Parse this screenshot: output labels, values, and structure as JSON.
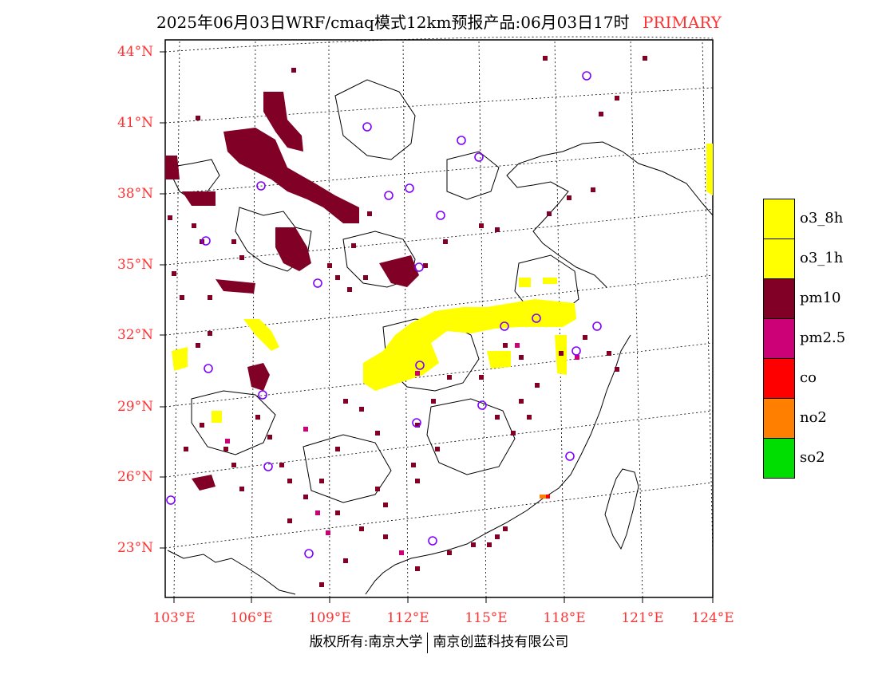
{
  "title": {
    "main": "2025年06月03日WRF/cmaq模式12km预报产品:06月03日17时",
    "status": "PRIMARY"
  },
  "map": {
    "lat_labels": [
      "44°N",
      "41°N",
      "38°N",
      "35°N",
      "32°N",
      "29°N",
      "26°N",
      "23°N"
    ],
    "lon_labels": [
      "103°E",
      "106°E",
      "109°E",
      "112°E",
      "115°E",
      "118°E",
      "121°E",
      "124°E"
    ],
    "colors": {
      "o3_8h": "#ffff00",
      "o3_1h": "#ffff00",
      "pm10": "#800026",
      "pm2_5": "#cc0077",
      "co": "#ff0000",
      "no2": "#ff8000",
      "so2": "#00dd00",
      "station": "#8000ff",
      "grid": "#000000",
      "label": "#ff3333"
    }
  },
  "legend": {
    "items": [
      {
        "label": "o3_8h",
        "color": "#ffff00"
      },
      {
        "label": "o3_1h",
        "color": "#ffff00"
      },
      {
        "label": "pm10",
        "color": "#800026"
      },
      {
        "label": "pm2.5",
        "color": "#cc0077"
      },
      {
        "label": "co",
        "color": "#ff0000"
      },
      {
        "label": "no2",
        "color": "#ff8000"
      },
      {
        "label": "so2",
        "color": "#00dd00"
      }
    ]
  },
  "footer": {
    "left": "版权所有:南京大学",
    "right": "南京创蓝科技有限公司"
  }
}
